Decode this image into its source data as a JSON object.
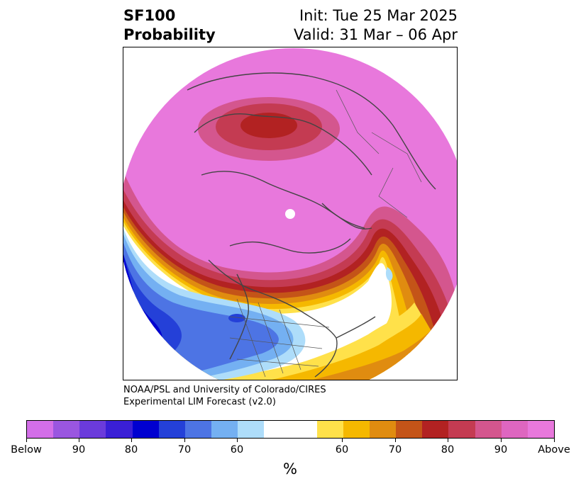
{
  "title": {
    "line1_left": "SF100",
    "line2_left": "Probability",
    "line1_right": "Init: Tue 25 Mar 2025",
    "line2_right": "Valid: 31 Mar – 06 Apr"
  },
  "credit": {
    "line1": "NOAA/PSL and University of Colorado/CIRES",
    "line2": "Experimental LIM Forecast (v2.0)"
  },
  "colorbar": {
    "unit": "%",
    "labels": [
      "Below",
      "90",
      "80",
      "70",
      "60",
      "60",
      "70",
      "80",
      "90",
      "Above"
    ],
    "colors": [
      "#d36ee8",
      "#9a56e0",
      "#6b3bdb",
      "#3a1fd6",
      "#0000d0",
      "#2440d8",
      "#4d74e4",
      "#74b0f2",
      "#aeddfa",
      "#ffffff",
      "#ffe14a",
      "#f5b800",
      "#e08c10",
      "#c45418",
      "#b22222",
      "#c43b52",
      "#d4568e",
      "#de66c0",
      "#e878dc"
    ]
  }
}
